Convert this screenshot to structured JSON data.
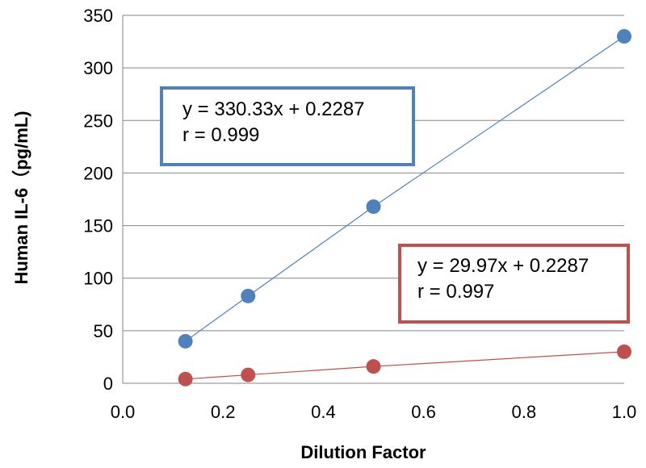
{
  "chart_data": {
    "type": "scatter",
    "title": "",
    "xlabel": "Dilution Factor",
    "ylabel": "Human IL-6（pg/mL)",
    "xlim": [
      0.0,
      1.0
    ],
    "ylim": [
      0,
      350
    ],
    "xticks": [
      "0.0",
      "0.2",
      "0.4",
      "0.6",
      "0.8",
      "1.0"
    ],
    "yticks": [
      "0",
      "50",
      "100",
      "150",
      "200",
      "250",
      "300",
      "350"
    ],
    "xtick_values": [
      0.0,
      0.2,
      0.4,
      0.6,
      0.8,
      1.0
    ],
    "ytick_values": [
      0,
      50,
      100,
      150,
      200,
      250,
      300,
      350
    ],
    "grid": "horizontal",
    "legend": "none",
    "series": [
      {
        "color": "#4f81bd",
        "x": [
          0.125,
          0.25,
          0.5,
          1.0
        ],
        "y": [
          40,
          83,
          168,
          330
        ],
        "trendline": true,
        "equation": "y = 330.33x + 0.2287",
        "r": "r = 0.999"
      },
      {
        "color": "#c0504d",
        "x": [
          0.125,
          0.25,
          0.5,
          1.0
        ],
        "y": [
          4,
          8,
          16,
          30
        ],
        "trendline": true,
        "equation": "y = 29.97x + 0.2287",
        "r": "r = 0.997"
      }
    ]
  }
}
